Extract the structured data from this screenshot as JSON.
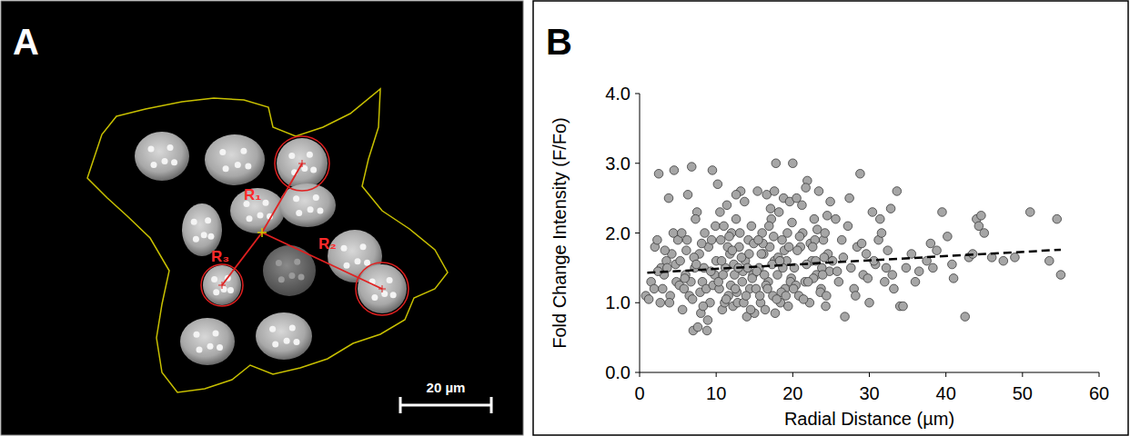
{
  "panel_a": {
    "panel_label": "A",
    "distance_labels": [
      "R₁",
      "R₂",
      "R₃"
    ],
    "scale_bar": "20 µm"
  },
  "chart_data": {
    "type": "scatter",
    "panel_label": "B",
    "x_label": "Radial Distance (µm)",
    "y_label": "Fold Change Intensity (F/Fo)",
    "xlim": [
      0,
      60
    ],
    "xticks": [
      0,
      10,
      20,
      30,
      40,
      50,
      60
    ],
    "ylim": [
      0,
      4
    ],
    "yticks": [
      {
        "value": 0,
        "label": "0.0"
      },
      {
        "value": 1,
        "label": "1.0"
      },
      {
        "value": 2,
        "label": "2.0"
      },
      {
        "value": 3,
        "label": "3.0"
      },
      {
        "value": 4,
        "label": "4.0"
      }
    ],
    "grid": false,
    "series": [
      {
        "type": "scatter",
        "marker": "circle",
        "color": "#a6a6a6",
        "x": [
          0.8,
          1.2,
          1.5,
          2.0,
          2.3,
          2.5,
          2.8,
          3.0,
          3.2,
          3.5,
          3.8,
          4.0,
          4.2,
          4.5,
          4.8,
          5.0,
          2.7,
          3.6,
          4.4,
          1.9,
          2.4,
          3.9,
          4.7,
          5.2,
          3.3,
          5.3,
          5.5,
          5.8,
          6.0,
          6.2,
          6.5,
          6.8,
          7.0,
          7.2,
          7.5,
          7.8,
          8.0,
          8.2,
          8.5,
          8.8,
          9.0,
          9.2,
          9.5,
          9.8,
          10.0,
          5.6,
          6.1,
          6.7,
          7.3,
          7.9,
          8.4,
          8.9,
          9.4,
          9.9,
          6.3,
          6.9,
          7.6,
          8.1,
          8.7,
          9.3,
          5.9,
          7.1,
          8.3,
          9.6,
          7.4,
          10.2,
          10.4,
          10.6,
          10.8,
          11.0,
          11.2,
          11.4,
          11.6,
          11.8,
          12.0,
          12.2,
          12.4,
          12.6,
          12.8,
          13.0,
          13.2,
          13.4,
          13.6,
          13.8,
          14.0,
          14.2,
          14.4,
          14.6,
          14.8,
          15.0,
          10.3,
          10.7,
          11.1,
          11.5,
          11.9,
          12.3,
          12.7,
          13.1,
          13.5,
          13.9,
          14.3,
          14.7,
          10.5,
          11.3,
          12.1,
          12.9,
          13.7,
          14.5,
          10.9,
          11.7,
          12.5,
          13.3,
          14.1,
          14.9,
          12.6,
          15.2,
          15.4,
          15.6,
          15.8,
          16.0,
          16.2,
          16.4,
          16.6,
          16.8,
          17.0,
          17.2,
          17.4,
          17.6,
          17.8,
          18.0,
          18.2,
          18.4,
          18.6,
          18.8,
          19.0,
          19.2,
          19.4,
          19.6,
          19.8,
          20.0,
          15.3,
          15.7,
          16.1,
          16.5,
          16.9,
          17.3,
          17.7,
          18.1,
          18.5,
          18.9,
          19.3,
          19.7,
          15.5,
          16.3,
          17.1,
          17.9,
          18.7,
          19.5,
          16.7,
          17.5,
          18.3,
          19.1,
          19.9,
          15.9,
          17.6,
          20.2,
          20.5,
          20.8,
          21.0,
          21.3,
          21.6,
          21.9,
          22.2,
          22.5,
          22.8,
          23.1,
          23.4,
          23.7,
          24.0,
          24.3,
          24.6,
          24.9,
          20.4,
          20.9,
          21.4,
          21.8,
          22.3,
          22.7,
          23.2,
          23.6,
          24.1,
          24.5,
          24.8,
          20.6,
          21.2,
          22.0,
          22.9,
          23.8,
          24.4,
          21.7,
          23.0,
          24.2,
          20.1,
          22.6,
          23.9,
          25.2,
          25.6,
          26.0,
          26.4,
          26.8,
          27.2,
          27.6,
          28.0,
          28.4,
          28.8,
          29.2,
          29.6,
          30.0,
          30.4,
          30.8,
          31.2,
          31.6,
          32.0,
          32.4,
          32.8,
          33.2,
          33.6,
          34.0,
          34.4,
          34.8,
          25.8,
          26.6,
          27.4,
          28.2,
          29.0,
          29.8,
          30.6,
          31.4,
          32.2,
          33.0,
          35.5,
          36.5,
          37.5,
          38.0,
          38.8,
          39.5,
          40.2,
          41.0,
          42.5,
          43.0,
          44.0,
          44.3,
          44.6,
          45.0,
          46.0,
          47.5,
          49.0,
          51.0,
          53.5,
          54.5,
          55.0,
          36.0,
          38.3,
          40.8,
          43.5
        ],
        "values": [
          1.1,
          1.05,
          1.3,
          1.8,
          1.9,
          2.85,
          1.5,
          1.2,
          1.4,
          1.6,
          2.5,
          1.1,
          1.7,
          2.9,
          1.3,
          1.9,
          1.0,
          1.5,
          2.0,
          1.2,
          1.45,
          1.0,
          1.55,
          1.25,
          1.75,
          1.6,
          2.0,
          1.2,
          1.4,
          1.9,
          1.1,
          2.95,
          0.6,
          1.5,
          2.3,
          1.7,
          0.85,
          1.3,
          2.0,
          0.6,
          1.8,
          1.0,
          2.9,
          1.4,
          1.6,
          0.9,
          1.75,
          1.3,
          2.2,
          1.15,
          1.5,
          0.75,
          1.9,
          2.1,
          2.55,
          1.05,
          0.65,
          1.85,
          1.2,
          1.45,
          1.35,
          1.65,
          0.95,
          1.25,
          1.55,
          2.7,
          1.2,
          1.9,
          0.9,
          2.1,
          1.5,
          2.4,
          1.1,
          1.7,
          2.0,
          0.95,
          1.4,
          2.2,
          1.0,
          1.8,
          2.6,
          1.3,
          1.0,
          1.6,
          0.8,
          1.9,
          1.2,
          2.1,
          1.4,
          0.85,
          1.3,
          1.6,
          1.0,
          1.8,
          1.25,
          1.55,
          1.15,
          2.0,
          1.45,
          1.1,
          1.7,
          1.35,
          2.3,
          1.05,
          1.75,
          1.5,
          2.45,
          0.9,
          1.4,
          1.95,
          1.2,
          1.65,
          1.5,
          1.85,
          2.55,
          1.2,
          2.6,
          1.5,
          1.0,
          2.0,
          1.7,
          0.9,
          2.55,
          1.3,
          1.8,
          2.2,
          1.1,
          1.6,
          3.0,
          1.4,
          2.3,
          1.0,
          1.9,
          2.5,
          1.2,
          1.6,
          0.95,
          2.45,
          1.35,
          3.0,
          1.45,
          1.1,
          1.85,
          1.25,
          2.1,
          1.55,
          0.85,
          1.65,
          1.15,
          1.75,
          2.0,
          1.3,
          1.9,
          1.4,
          2.35,
          1.05,
          1.5,
          1.8,
          1.2,
          1.95,
          1.6,
          1.1,
          2.15,
          1.7,
          2.6,
          1.5,
          2.5,
          1.1,
          1.8,
          2.0,
          1.3,
          2.75,
          1.0,
          1.6,
          2.2,
          1.4,
          2.6,
          1.2,
          1.9,
          0.95,
          1.7,
          2.45,
          1.25,
          1.95,
          1.05,
          1.55,
          1.85,
          1.35,
          2.05,
          1.15,
          1.65,
          2.25,
          1.45,
          1.75,
          2.4,
          1.3,
          1.9,
          1.5,
          1.1,
          2.65,
          1.6,
          2.0,
          1.2,
          1.8,
          1.4,
          1.6,
          2.2,
          1.3,
          1.9,
          0.8,
          2.1,
          1.5,
          1.2,
          1.8,
          2.85,
          1.4,
          1.7,
          1.0,
          2.3,
          1.55,
          1.9,
          2.0,
          1.3,
          1.75,
          2.35,
          1.2,
          2.6,
          0.95,
          0.95,
          1.5,
          1.45,
          1.65,
          2.5,
          1.1,
          1.85,
          1.35,
          1.6,
          2.2,
          1.5,
          1.4,
          1.7,
          1.45,
          1.6,
          1.85,
          1.75,
          2.3,
          1.95,
          1.35,
          0.8,
          1.65,
          2.2,
          2.1,
          2.25,
          2.0,
          1.65,
          1.6,
          1.65,
          2.3,
          1.6,
          2.2,
          1.4,
          1.3,
          1.5,
          1.55,
          1.7
        ]
      },
      {
        "type": "line",
        "line_style": "dashed",
        "color": "#000000",
        "x": [
          1,
          55
        ],
        "values": [
          1.43,
          1.76
        ]
      }
    ]
  }
}
